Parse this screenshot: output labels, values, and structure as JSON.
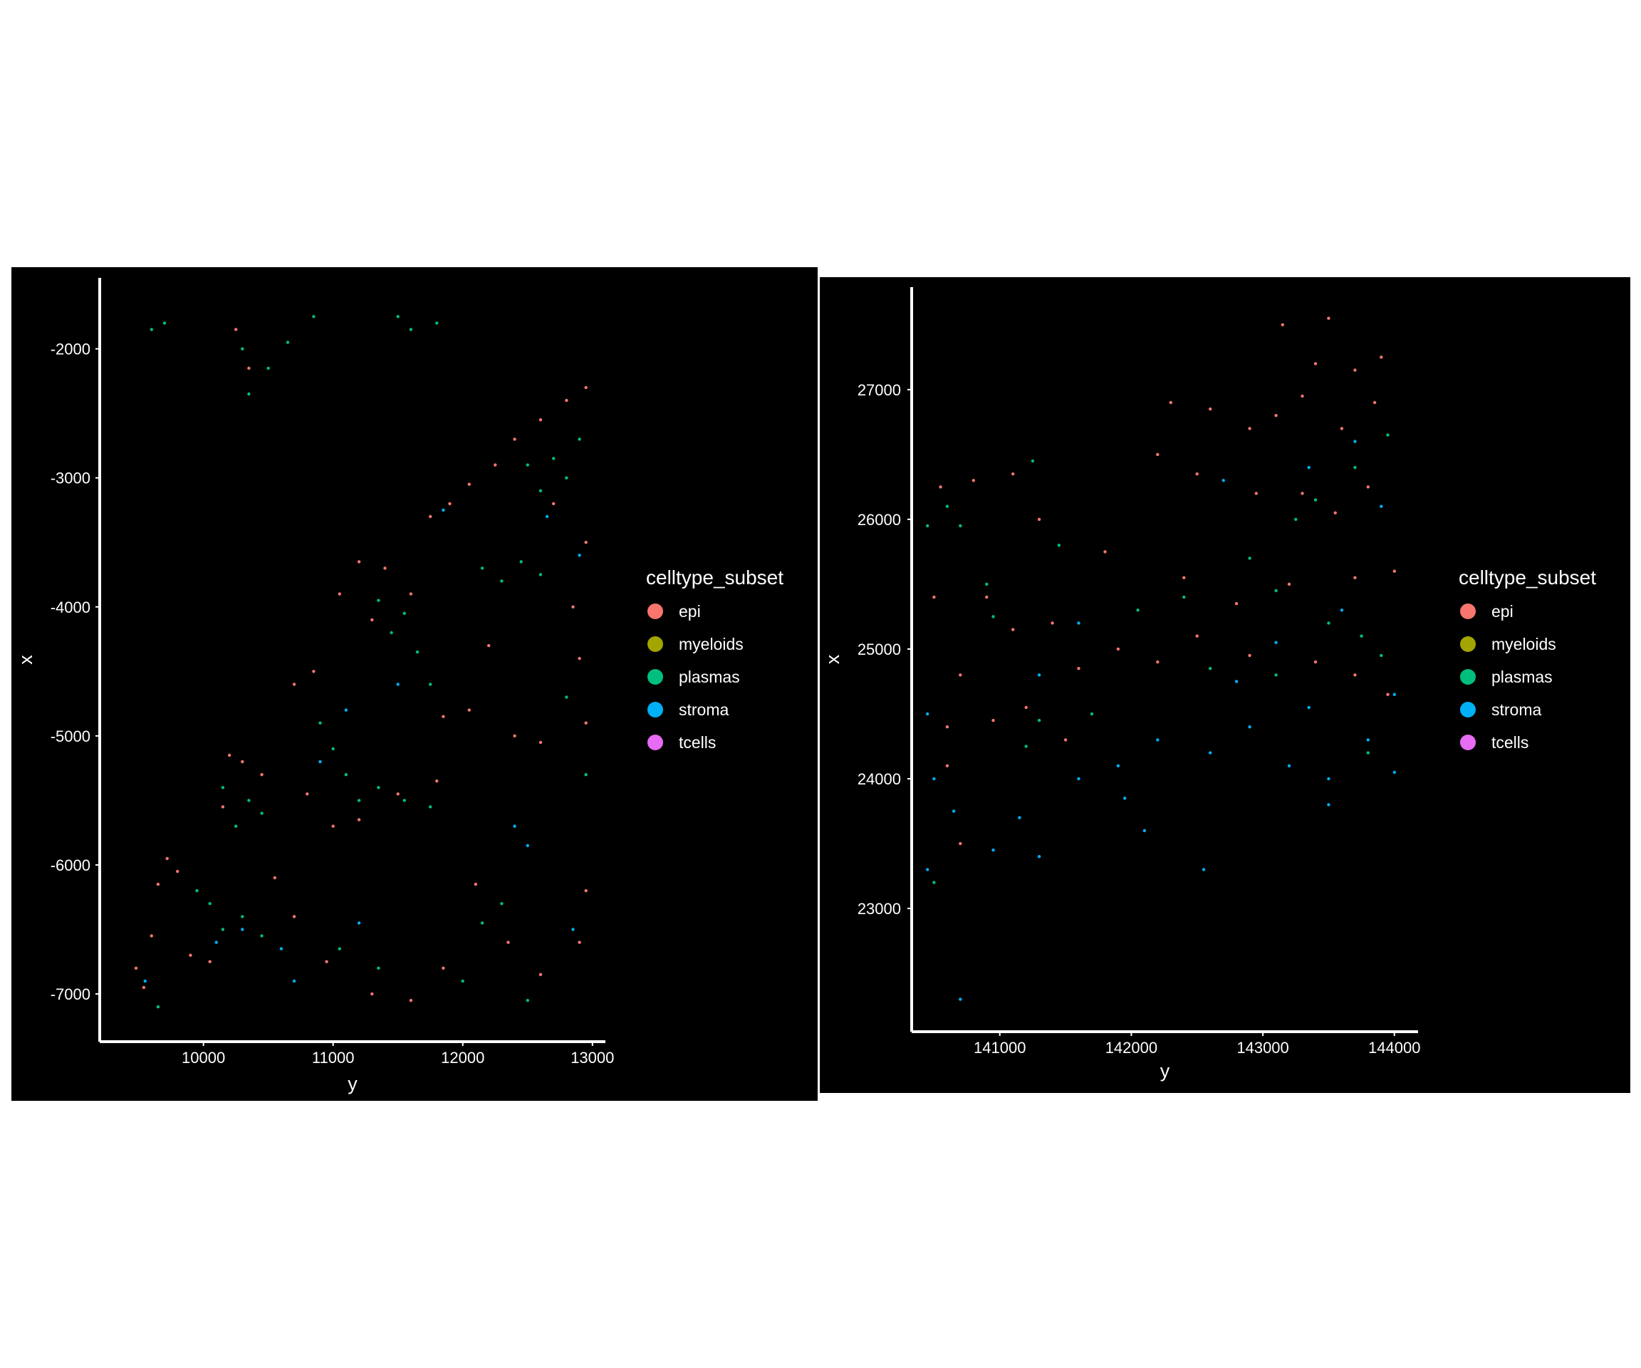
{
  "chart_data": [
    {
      "type": "scatter",
      "xlabel": "y",
      "ylabel": "x",
      "xlim": [
        9200,
        13100
      ],
      "ylim": [
        -7370,
        -1450
      ],
      "x_ticks": [
        10000,
        11000,
        12000,
        13000
      ],
      "y_ticks": [
        -2000,
        -3000,
        -4000,
        -5000,
        -6000,
        -7000
      ],
      "x_tick_labels": [
        "10000",
        "11000",
        "12000",
        "13000"
      ],
      "y_tick_labels": [
        "-2000",
        "-3000",
        "-4000",
        "-5000",
        "-6000",
        "-7000"
      ],
      "background": "#000000",
      "grid": false,
      "legend": {
        "title": "celltype_subset",
        "placement": "right",
        "entries": [
          {
            "label": "epi",
            "color": "#F8766D"
          },
          {
            "label": "myeloids",
            "color": "#A3A500"
          },
          {
            "label": "plasmas",
            "color": "#00BF7D"
          },
          {
            "label": "stroma",
            "color": "#00B0F6"
          },
          {
            "label": "tcells",
            "color": "#E76BF3"
          }
        ]
      },
      "series": [
        {
          "name": "epi",
          "color": "#F8766D",
          "points": [
            [
              9480,
              -6800
            ],
            [
              9540,
              -6950
            ],
            [
              9600,
              -6550
            ],
            [
              9650,
              -6150
            ],
            [
              9720,
              -5950
            ],
            [
              9800,
              -6050
            ],
            [
              9900,
              -6700
            ],
            [
              10050,
              -6750
            ],
            [
              10200,
              -5150
            ],
            [
              10150,
              -5550
            ],
            [
              10300,
              -5200
            ],
            [
              10450,
              -5300
            ],
            [
              10700,
              -4600
            ],
            [
              10850,
              -4500
            ],
            [
              11050,
              -3900
            ],
            [
              11200,
              -3650
            ],
            [
              11400,
              -3700
            ],
            [
              11300,
              -4100
            ],
            [
              11600,
              -3900
            ],
            [
              11750,
              -3300
            ],
            [
              11900,
              -3200
            ],
            [
              12050,
              -3050
            ],
            [
              12250,
              -2900
            ],
            [
              12400,
              -2700
            ],
            [
              12600,
              -2550
            ],
            [
              12800,
              -2400
            ],
            [
              12950,
              -2300
            ],
            [
              12700,
              -3200
            ],
            [
              12950,
              -3500
            ],
            [
              12850,
              -4000
            ],
            [
              12900,
              -4400
            ],
            [
              12950,
              -4900
            ],
            [
              12600,
              -5050
            ],
            [
              12400,
              -5000
            ],
            [
              12050,
              -4800
            ],
            [
              11800,
              -5350
            ],
            [
              11500,
              -5450
            ],
            [
              11200,
              -5650
            ],
            [
              11000,
              -5700
            ],
            [
              10800,
              -5450
            ],
            [
              10550,
              -6100
            ],
            [
              10700,
              -6400
            ],
            [
              10950,
              -6750
            ],
            [
              11300,
              -7000
            ],
            [
              11600,
              -7050
            ],
            [
              11850,
              -6800
            ],
            [
              12100,
              -6150
            ],
            [
              12350,
              -6600
            ],
            [
              12600,
              -6850
            ],
            [
              12900,
              -6600
            ],
            [
              12950,
              -6200
            ],
            [
              10250,
              -1850
            ],
            [
              10350,
              -2150
            ],
            [
              12200,
              -4300
            ],
            [
              11850,
              -4850
            ]
          ]
        },
        {
          "name": "plasmas",
          "color": "#00BF7D",
          "points": [
            [
              9700,
              -1800
            ],
            [
              9600,
              -1850
            ],
            [
              10300,
              -2000
            ],
            [
              10350,
              -2350
            ],
            [
              10500,
              -2150
            ],
            [
              10650,
              -1950
            ],
            [
              10850,
              -1750
            ],
            [
              11500,
              -1750
            ],
            [
              11600,
              -1850
            ],
            [
              11800,
              -1800
            ],
            [
              10300,
              -6400
            ],
            [
              10450,
              -6550
            ],
            [
              10150,
              -6500
            ],
            [
              10050,
              -6300
            ],
            [
              9950,
              -6200
            ],
            [
              10250,
              -5700
            ],
            [
              10350,
              -5500
            ],
            [
              10450,
              -5600
            ],
            [
              10150,
              -5400
            ],
            [
              10900,
              -4900
            ],
            [
              11000,
              -5100
            ],
            [
              11100,
              -5300
            ],
            [
              11200,
              -5500
            ],
            [
              11350,
              -5400
            ],
            [
              11550,
              -5500
            ],
            [
              11750,
              -5550
            ],
            [
              11450,
              -4200
            ],
            [
              11550,
              -4050
            ],
            [
              11650,
              -4350
            ],
            [
              11750,
              -4600
            ],
            [
              11350,
              -3950
            ],
            [
              12150,
              -3700
            ],
            [
              12300,
              -3800
            ],
            [
              12450,
              -3650
            ],
            [
              12600,
              -3750
            ],
            [
              12700,
              -2850
            ],
            [
              12800,
              -3000
            ],
            [
              12900,
              -2700
            ],
            [
              12600,
              -3100
            ],
            [
              12500,
              -2900
            ],
            [
              11050,
              -6650
            ],
            [
              11350,
              -6800
            ],
            [
              12150,
              -6450
            ],
            [
              12300,
              -6300
            ],
            [
              12000,
              -6900
            ],
            [
              12500,
              -7050
            ],
            [
              12950,
              -5300
            ],
            [
              12800,
              -4700
            ],
            [
              9650,
              -7100
            ]
          ]
        },
        {
          "name": "stroma",
          "color": "#00B0F6",
          "points": [
            [
              10300,
              -6500
            ],
            [
              10600,
              -6650
            ],
            [
              10100,
              -6600
            ],
            [
              10900,
              -5200
            ],
            [
              11100,
              -4800
            ],
            [
              12400,
              -5700
            ],
            [
              12500,
              -5850
            ],
            [
              11500,
              -4600
            ],
            [
              12650,
              -3300
            ],
            [
              12900,
              -3600
            ],
            [
              12850,
              -6500
            ],
            [
              11850,
              -3250
            ],
            [
              9550,
              -6900
            ],
            [
              10700,
              -6900
            ],
            [
              11200,
              -6450
            ]
          ]
        }
      ]
    },
    {
      "type": "scatter",
      "xlabel": "y",
      "ylabel": "x",
      "xlim": [
        140330,
        144180
      ],
      "ylim": [
        22050,
        27790
      ],
      "x_ticks": [
        141000,
        142000,
        143000,
        144000
      ],
      "y_ticks": [
        27000,
        26000,
        25000,
        24000,
        23000
      ],
      "x_tick_labels": [
        "141000",
        "142000",
        "143000",
        "144000"
      ],
      "y_tick_labels": [
        "27000",
        "26000",
        "25000",
        "24000",
        "23000"
      ],
      "background": "#000000",
      "grid": false,
      "legend": {
        "title": "celltype_subset",
        "placement": "right",
        "entries": [
          {
            "label": "epi",
            "color": "#F8766D"
          },
          {
            "label": "myeloids",
            "color": "#A3A500"
          },
          {
            "label": "plasmas",
            "color": "#00BF7D"
          },
          {
            "label": "stroma",
            "color": "#00B0F6"
          },
          {
            "label": "tcells",
            "color": "#E76BF3"
          }
        ]
      },
      "series": [
        {
          "name": "epi",
          "color": "#F8766D",
          "points": [
            [
              143150,
              27500
            ],
            [
              143500,
              27550
            ],
            [
              143400,
              27200
            ],
            [
              143700,
              27150
            ],
            [
              143900,
              27250
            ],
            [
              143300,
              26950
            ],
            [
              143600,
              26700
            ],
            [
              143850,
              26900
            ],
            [
              142300,
              26900
            ],
            [
              142600,
              26850
            ],
            [
              142900,
              26700
            ],
            [
              143100,
              26800
            ],
            [
              142200,
              26500
            ],
            [
              142500,
              26350
            ],
            [
              143300,
              26200
            ],
            [
              143550,
              26050
            ],
            [
              143800,
              26250
            ],
            [
              144000,
              25600
            ],
            [
              143700,
              25550
            ],
            [
              143200,
              25500
            ],
            [
              142800,
              25350
            ],
            [
              142500,
              25100
            ],
            [
              142200,
              24900
            ],
            [
              141900,
              25000
            ],
            [
              141600,
              24850
            ],
            [
              141400,
              25200
            ],
            [
              141100,
              25150
            ],
            [
              140900,
              25400
            ],
            [
              140700,
              24800
            ],
            [
              140600,
              24400
            ],
            [
              140950,
              24450
            ],
            [
              141200,
              24550
            ],
            [
              141500,
              24300
            ],
            [
              140800,
              26300
            ],
            [
              141100,
              26350
            ],
            [
              140550,
              26250
            ],
            [
              140500,
              25400
            ],
            [
              140600,
              24100
            ],
            [
              143400,
              24900
            ],
            [
              143700,
              24800
            ],
            [
              143950,
              24650
            ],
            [
              142900,
              24950
            ],
            [
              141800,
              25750
            ],
            [
              142400,
              25550
            ],
            [
              142950,
              26200
            ],
            [
              140700,
              23500
            ],
            [
              141300,
              26000
            ]
          ]
        },
        {
          "name": "plasmas",
          "color": "#00BF7D",
          "points": [
            [
              140600,
              26100
            ],
            [
              140450,
              25950
            ],
            [
              140700,
              25950
            ],
            [
              141250,
              26450
            ],
            [
              140900,
              25500
            ],
            [
              140950,
              25250
            ],
            [
              141300,
              24450
            ],
            [
              141700,
              24500
            ],
            [
              141450,
              25800
            ],
            [
              142050,
              25300
            ],
            [
              142400,
              25400
            ],
            [
              142900,
              25700
            ],
            [
              143100,
              25450
            ],
            [
              143400,
              26150
            ],
            [
              143700,
              26400
            ],
            [
              143950,
              26650
            ],
            [
              143250,
              26000
            ],
            [
              143500,
              25200
            ],
            [
              143750,
              25100
            ],
            [
              143900,
              24950
            ],
            [
              143800,
              24200
            ],
            [
              143100,
              24800
            ],
            [
              142600,
              24850
            ],
            [
              140500,
              23200
            ],
            [
              141200,
              24250
            ]
          ]
        },
        {
          "name": "stroma",
          "color": "#00B0F6",
          "points": [
            [
              140500,
              24000
            ],
            [
              140650,
              23750
            ],
            [
              140450,
              23300
            ],
            [
              140950,
              23450
            ],
            [
              141300,
              23400
            ],
            [
              141150,
              23700
            ],
            [
              141600,
              24000
            ],
            [
              141900,
              24100
            ],
            [
              142200,
              24300
            ],
            [
              142600,
              24200
            ],
            [
              142900,
              24400
            ],
            [
              143200,
              24100
            ],
            [
              143500,
              24000
            ],
            [
              143800,
              24300
            ],
            [
              144000,
              24050
            ],
            [
              143500,
              23800
            ],
            [
              142100,
              23600
            ],
            [
              142550,
              23300
            ],
            [
              141950,
              23850
            ],
            [
              142800,
              24750
            ],
            [
              143100,
              25050
            ],
            [
              143350,
              26400
            ],
            [
              143700,
              26600
            ],
            [
              143600,
              25300
            ],
            [
              142700,
              26300
            ],
            [
              141600,
              25200
            ],
            [
              141300,
              24800
            ],
            [
              140700,
              22300
            ],
            [
              140450,
              24500
            ],
            [
              144000,
              24650
            ],
            [
              143350,
              24550
            ],
            [
              143900,
              26100
            ]
          ]
        }
      ]
    }
  ]
}
